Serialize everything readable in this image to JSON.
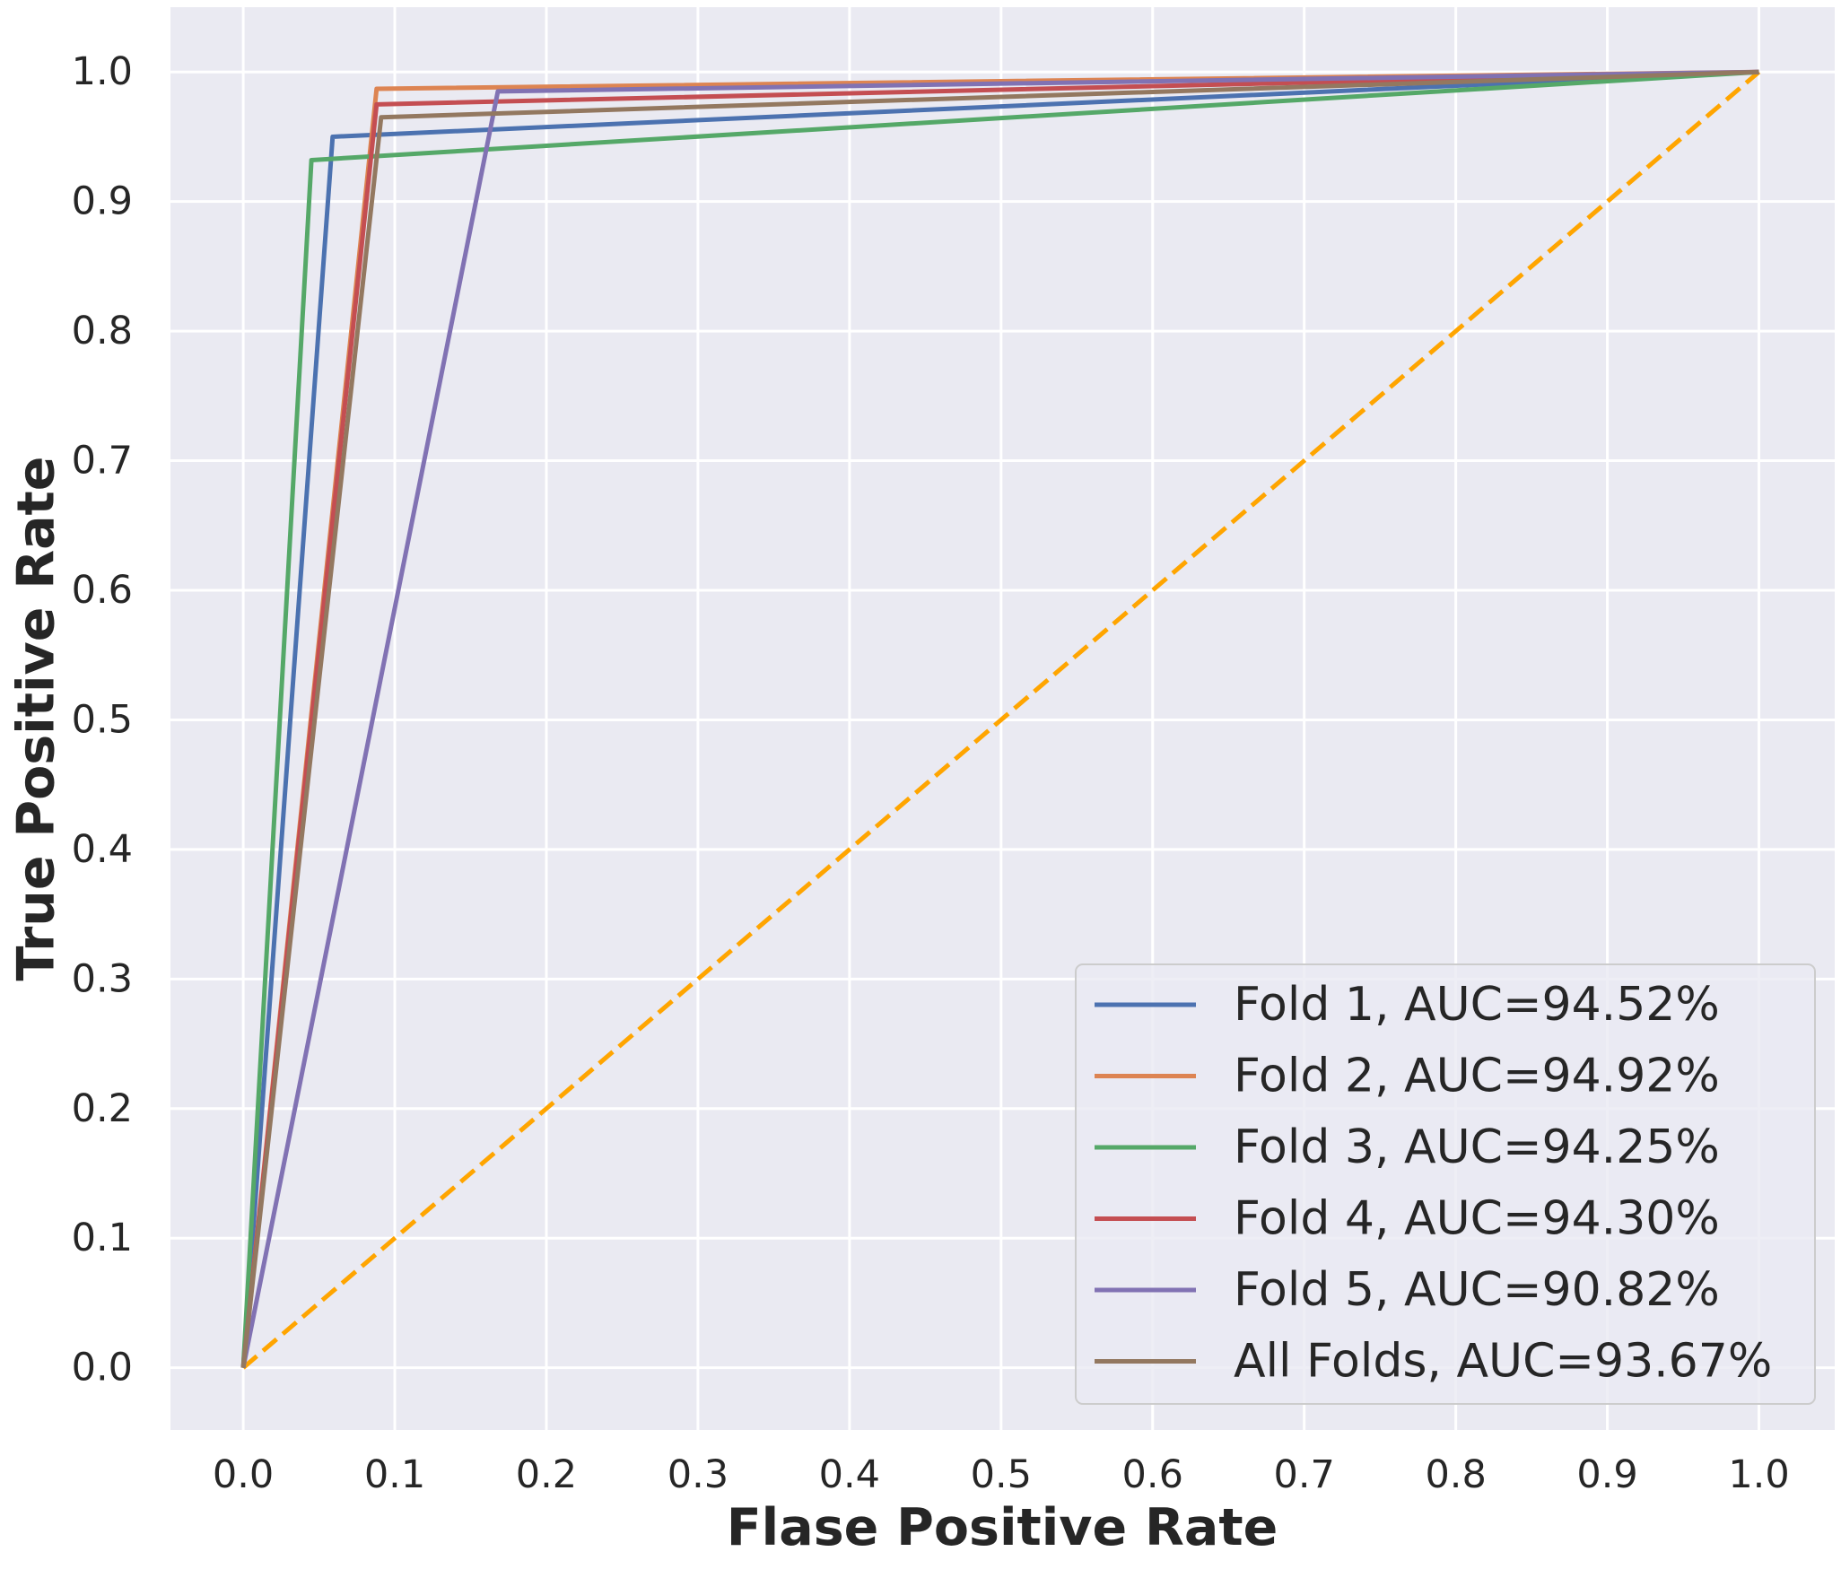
{
  "chart_data": {
    "type": "line",
    "title": "",
    "xlabel": "Flase Positive Rate",
    "ylabel": "True Positive Rate",
    "xlim": [
      -0.048,
      1.05
    ],
    "ylim": [
      -0.048,
      1.05
    ],
    "xticks": [
      0.0,
      0.1,
      0.2,
      0.3,
      0.4,
      0.5,
      0.6,
      0.7,
      0.8,
      0.9,
      1.0
    ],
    "yticks": [
      0.0,
      0.1,
      0.2,
      0.3,
      0.4,
      0.5,
      0.6,
      0.7,
      0.8,
      0.9,
      1.0
    ],
    "xtick_labels": [
      "0.0",
      "0.1",
      "0.2",
      "0.3",
      "0.4",
      "0.5",
      "0.6",
      "0.7",
      "0.8",
      "0.9",
      "1.0"
    ],
    "ytick_labels": [
      "0.0",
      "0.1",
      "0.2",
      "0.3",
      "0.4",
      "0.5",
      "0.6",
      "0.7",
      "0.8",
      "0.9",
      "1.0"
    ],
    "grid": true,
    "legend_position": "lower-right",
    "background_color": "#eaeaf2",
    "grid_color": "#ffffff",
    "series": [
      {
        "name": "Fold 1, AUC=94.52%",
        "color": "#4c72b0",
        "x": [
          0.0,
          0.059,
          1.0
        ],
        "y": [
          0.0,
          0.95,
          1.0
        ]
      },
      {
        "name": "Fold 2, AUC=94.92%",
        "color": "#dd8452",
        "x": [
          0.0,
          0.088,
          1.0
        ],
        "y": [
          0.0,
          0.987,
          1.0
        ]
      },
      {
        "name": "Fold 3, AUC=94.25%",
        "color": "#55a868",
        "x": [
          0.0,
          0.045,
          1.0
        ],
        "y": [
          0.0,
          0.932,
          1.0
        ]
      },
      {
        "name": "Fold 4, AUC=94.30%",
        "color": "#c44e52",
        "x": [
          0.0,
          0.088,
          1.0
        ],
        "y": [
          0.0,
          0.975,
          1.0
        ]
      },
      {
        "name": "Fold 5, AUC=90.82%",
        "color": "#8172b3",
        "x": [
          0.0,
          0.168,
          1.0
        ],
        "y": [
          0.0,
          0.985,
          1.0
        ]
      },
      {
        "name": "All Folds, AUC=93.67%",
        "color": "#937860",
        "x": [
          0.0,
          0.091,
          1.0
        ],
        "y": [
          0.0,
          0.965,
          1.0
        ]
      }
    ],
    "reference_line": {
      "color": "#ffa500",
      "style": "dashed",
      "x": [
        0.0,
        1.0
      ],
      "y": [
        0.0,
        1.0
      ]
    }
  }
}
